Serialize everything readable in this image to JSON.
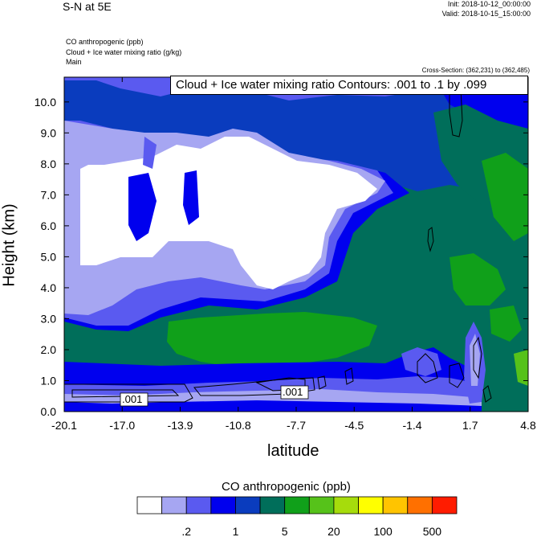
{
  "header": {
    "title": "S-N at 5E",
    "init": "Init: 2018-10-12_00:00:00",
    "valid": "Valid: 2018-10-15_15:00:00",
    "fields": [
      "CO anthropogenic   (ppb)",
      "Cloud + Ice water mixing ratio   (g/kg)",
      "Main"
    ],
    "cross_section": "Cross-Section: (362,231) to (362,485)"
  },
  "contour_box": "Cloud + Ice water mixing ratio Contours: .001 to .1 by .099",
  "chart_data": {
    "type": "heatmap",
    "xlabel": "latitude",
    "ylabel": "Height (km)",
    "xticks": [
      "-20.1",
      "-17.0",
      "-13.9",
      "-10.8",
      "-7.7",
      "-4.5",
      "-1.4",
      "1.7",
      "4.8"
    ],
    "yticks": [
      "0.0",
      "1.0",
      "2.0",
      "3.0",
      "4.0",
      "5.0",
      "6.0",
      "7.0",
      "8.0",
      "9.0",
      "10.0"
    ],
    "xlim": [
      -20.1,
      4.8
    ],
    "ylim": [
      0.0,
      10.8
    ],
    "contour_labels": [
      ".001",
      ".001"
    ],
    "colorbar": {
      "label": "CO anthropogenic  (ppb)",
      "colors": [
        "#ffffff",
        "#a6a6f2",
        "#5a5af0",
        "#0000ee",
        "#0a3cbe",
        "#006e5a",
        "#10a01a",
        "#56c21a",
        "#a6dc0c",
        "#ffff00",
        "#ffc400",
        "#ff7000",
        "#ff1c00"
      ],
      "tick_labels": [
        ".2",
        "1",
        "5",
        "20",
        "100",
        "500"
      ]
    }
  }
}
